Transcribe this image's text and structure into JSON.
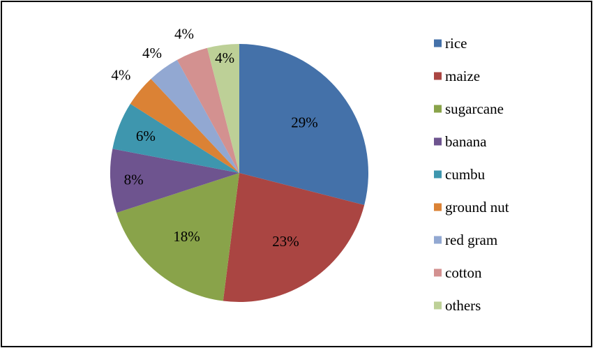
{
  "chart_data": {
    "type": "pie",
    "title": "",
    "categories": [
      "rice",
      "maize",
      "sugarcane",
      "banana",
      "cumbu",
      "ground nut",
      "red gram",
      "cotton",
      "others"
    ],
    "values": [
      29,
      23,
      18,
      8,
      6,
      4,
      4,
      4,
      4
    ],
    "labels": [
      "29%",
      "23%",
      "18%",
      "8%",
      "6%",
      "4%",
      "4%",
      "4%",
      "4%"
    ],
    "colors": [
      "#4471a9",
      "#aa4542",
      "#89a34a",
      "#6e548f",
      "#3e96ae",
      "#db8235",
      "#92a8d2",
      "#d39190",
      "#bdd097"
    ],
    "legend": "right"
  }
}
